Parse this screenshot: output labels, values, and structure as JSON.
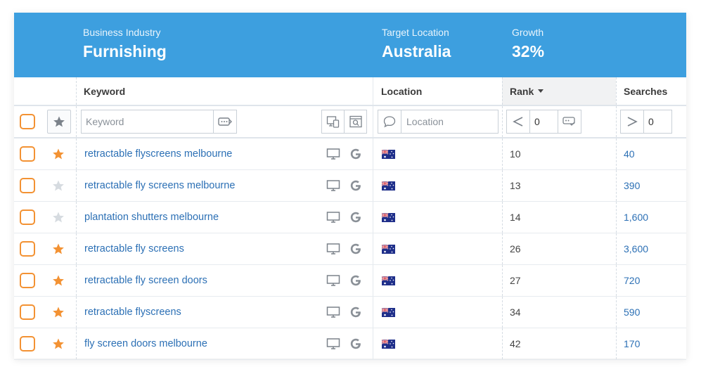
{
  "summary": {
    "industry_label": "Business Industry",
    "industry_value": "Furnishing",
    "location_label": "Target Location",
    "location_value": "Australia",
    "growth_label": "Growth",
    "growth_value": "32%"
  },
  "columns": {
    "keyword": "Keyword",
    "location": "Location",
    "rank": "Rank",
    "searches": "Searches"
  },
  "filters": {
    "keyword_placeholder": "Keyword",
    "location_placeholder": "Location",
    "rank_operator": "<",
    "rank_value": "0",
    "searches_operator": ">",
    "searches_value": "0"
  },
  "rows": [
    {
      "keyword": "retractable flyscreens melbourne",
      "starred": true,
      "rank": "10",
      "searches": "40"
    },
    {
      "keyword": "retractable fly screens melbourne",
      "starred": false,
      "rank": "13",
      "searches": "390"
    },
    {
      "keyword": "plantation shutters melbourne",
      "starred": false,
      "rank": "14",
      "searches": "1,600"
    },
    {
      "keyword": "retractable fly screens",
      "starred": true,
      "rank": "26",
      "searches": "3,600"
    },
    {
      "keyword": "retractable fly screen doors",
      "starred": true,
      "rank": "27",
      "searches": "720"
    },
    {
      "keyword": "retractable flyscreens",
      "starred": true,
      "rank": "34",
      "searches": "590"
    },
    {
      "keyword": "fly screen doors melbourne",
      "starred": true,
      "rank": "42",
      "searches": "170"
    }
  ],
  "colors": {
    "header": "#3d9fdf",
    "checkbox": "#f39233",
    "star_active": "#f39233",
    "star_inactive": "#d6dbe0",
    "link": "#2c70b5"
  },
  "icons": {
    "device": "desktop-icon",
    "engine": "google-icon",
    "flag": "australia-flag-icon"
  }
}
